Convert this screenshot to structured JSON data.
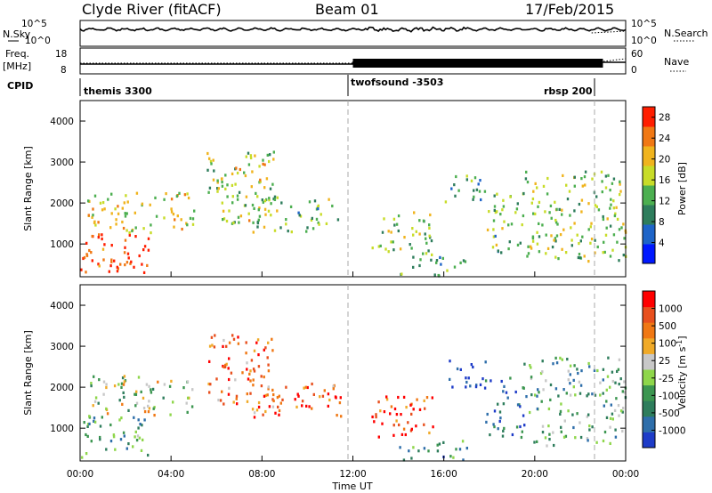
{
  "header": {
    "station": "Clyde River (fitACF)",
    "beam": "Beam 01",
    "date": "17/Feb/2015"
  },
  "strips": {
    "nsky_label": "N.Sky",
    "nsearch_label": "N.Search",
    "noise_ticks_left": [
      "10^5",
      "10^0"
    ],
    "noise_ticks_right": [
      "10^5",
      "10^0"
    ],
    "freq_label_1": "Freq.",
    "freq_label_2": "[MHz]",
    "freq_ticks": [
      "18",
      "8"
    ],
    "nave_label": "Nave",
    "nave_ticks": [
      "60",
      "0"
    ],
    "cpid_label": "CPID",
    "cpid_segments": [
      {
        "label": "themis 3300",
        "start": 0.0,
        "end": 12.0
      },
      {
        "label": "twofsound -3503",
        "start": 12.0,
        "end": 23.0
      },
      {
        "label": "rbsp 200",
        "start": 23.0,
        "end": 24.0
      }
    ]
  },
  "chart_data": [
    {
      "type": "heatmap",
      "panel": "power",
      "xlabel": "",
      "ylabel": "Slant Range [km]",
      "xlim_hours": [
        0,
        24
      ],
      "ylim_km": [
        200,
        4500
      ],
      "y_ticks": [
        1000,
        2000,
        3000,
        4000
      ],
      "colorbar": {
        "label": "Power [dB]",
        "ticks": [
          4,
          8,
          12,
          16,
          20,
          24,
          28
        ],
        "range": [
          0,
          30
        ],
        "colors": [
          "#0018ff",
          "#1e64c8",
          "#2e7d5c",
          "#4caf50",
          "#c8dc28",
          "#f0b41e",
          "#f07814",
          "#ff1e00"
        ]
      },
      "echo_regions": [
        {
          "t0": 0.0,
          "t1": 3.0,
          "r0": 300,
          "r1": 1300,
          "level": 0.95
        },
        {
          "t0": 0.3,
          "t1": 5.0,
          "r0": 1300,
          "r1": 2300,
          "level": 0.6
        },
        {
          "t0": 5.5,
          "t1": 8.5,
          "r0": 1500,
          "r1": 3300,
          "level": 0.55
        },
        {
          "t0": 7.5,
          "t1": 11.5,
          "r0": 1300,
          "r1": 2200,
          "level": 0.45
        },
        {
          "t0": 12.8,
          "t1": 15.5,
          "r0": 800,
          "r1": 1800,
          "level": 0.5
        },
        {
          "t0": 14.0,
          "t1": 17.0,
          "r0": 250,
          "r1": 800,
          "level": 0.4
        },
        {
          "t0": 16.0,
          "t1": 17.8,
          "r0": 2000,
          "r1": 2700,
          "level": 0.35
        },
        {
          "t0": 17.8,
          "t1": 19.5,
          "r0": 800,
          "r1": 2300,
          "level": 0.45
        },
        {
          "t0": 19.5,
          "t1": 24.0,
          "r0": 600,
          "r1": 2800,
          "level": 0.5
        }
      ]
    },
    {
      "type": "heatmap",
      "panel": "velocity",
      "xlabel": "Time UT",
      "ylabel": "Slant Range [km]",
      "xlim_hours": [
        0,
        24
      ],
      "ylim_km": [
        200,
        4500
      ],
      "x_ticks": [
        "00:00",
        "04:00",
        "08:00",
        "12:00",
        "16:00",
        "20:00",
        "00:00"
      ],
      "y_ticks": [
        1000,
        2000,
        3000,
        4000
      ],
      "colorbar": {
        "label": "Velocity [m s^-1]",
        "ticks": [
          "1000",
          "500",
          "100",
          "25",
          "-25",
          "-100",
          "-500",
          "-1000"
        ],
        "colors": [
          "#1e3cc8",
          "#2e6eaa",
          "#2e7d5c",
          "#3c9650",
          "#8ed64a",
          "#c8c8c8",
          "#f0aa28",
          "#f07814",
          "#e8501e",
          "#ff0000"
        ]
      },
      "echo_regions": [
        {
          "t0": 0.0,
          "t1": 3.0,
          "r0": 300,
          "r1": 1300,
          "level": 0.35
        },
        {
          "t0": 0.3,
          "t1": 5.0,
          "r0": 1300,
          "r1": 2300,
          "level": 0.5
        },
        {
          "t0": 5.5,
          "t1": 8.5,
          "r0": 1500,
          "r1": 3300,
          "level": 0.75
        },
        {
          "t0": 7.5,
          "t1": 11.5,
          "r0": 1300,
          "r1": 2200,
          "level": 0.8
        },
        {
          "t0": 12.8,
          "t1": 15.5,
          "r0": 800,
          "r1": 1800,
          "level": 0.85
        },
        {
          "t0": 14.0,
          "t1": 17.0,
          "r0": 250,
          "r1": 800,
          "level": 0.3
        },
        {
          "t0": 16.0,
          "t1": 17.8,
          "r0": 2000,
          "r1": 2700,
          "level": 0.05
        },
        {
          "t0": 17.8,
          "t1": 19.5,
          "r0": 800,
          "r1": 2300,
          "level": 0.2
        },
        {
          "t0": 19.5,
          "t1": 24.0,
          "r0": 600,
          "r1": 2800,
          "level": 0.35
        }
      ]
    }
  ]
}
